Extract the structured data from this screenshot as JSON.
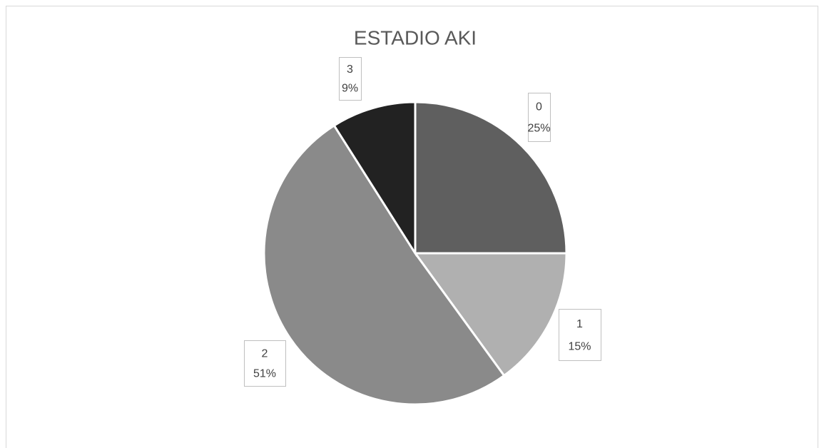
{
  "chart_data": {
    "type": "pie",
    "title": "ESTADIO AKI",
    "categories": [
      "0",
      "1",
      "2",
      "3"
    ],
    "values": [
      25,
      15,
      51,
      9
    ],
    "value_labels": [
      "25%",
      "15%",
      "51%",
      "9%"
    ],
    "colors": [
      "#5f5f5f",
      "#b0b0b0",
      "#8a8a8a",
      "#222222"
    ]
  }
}
